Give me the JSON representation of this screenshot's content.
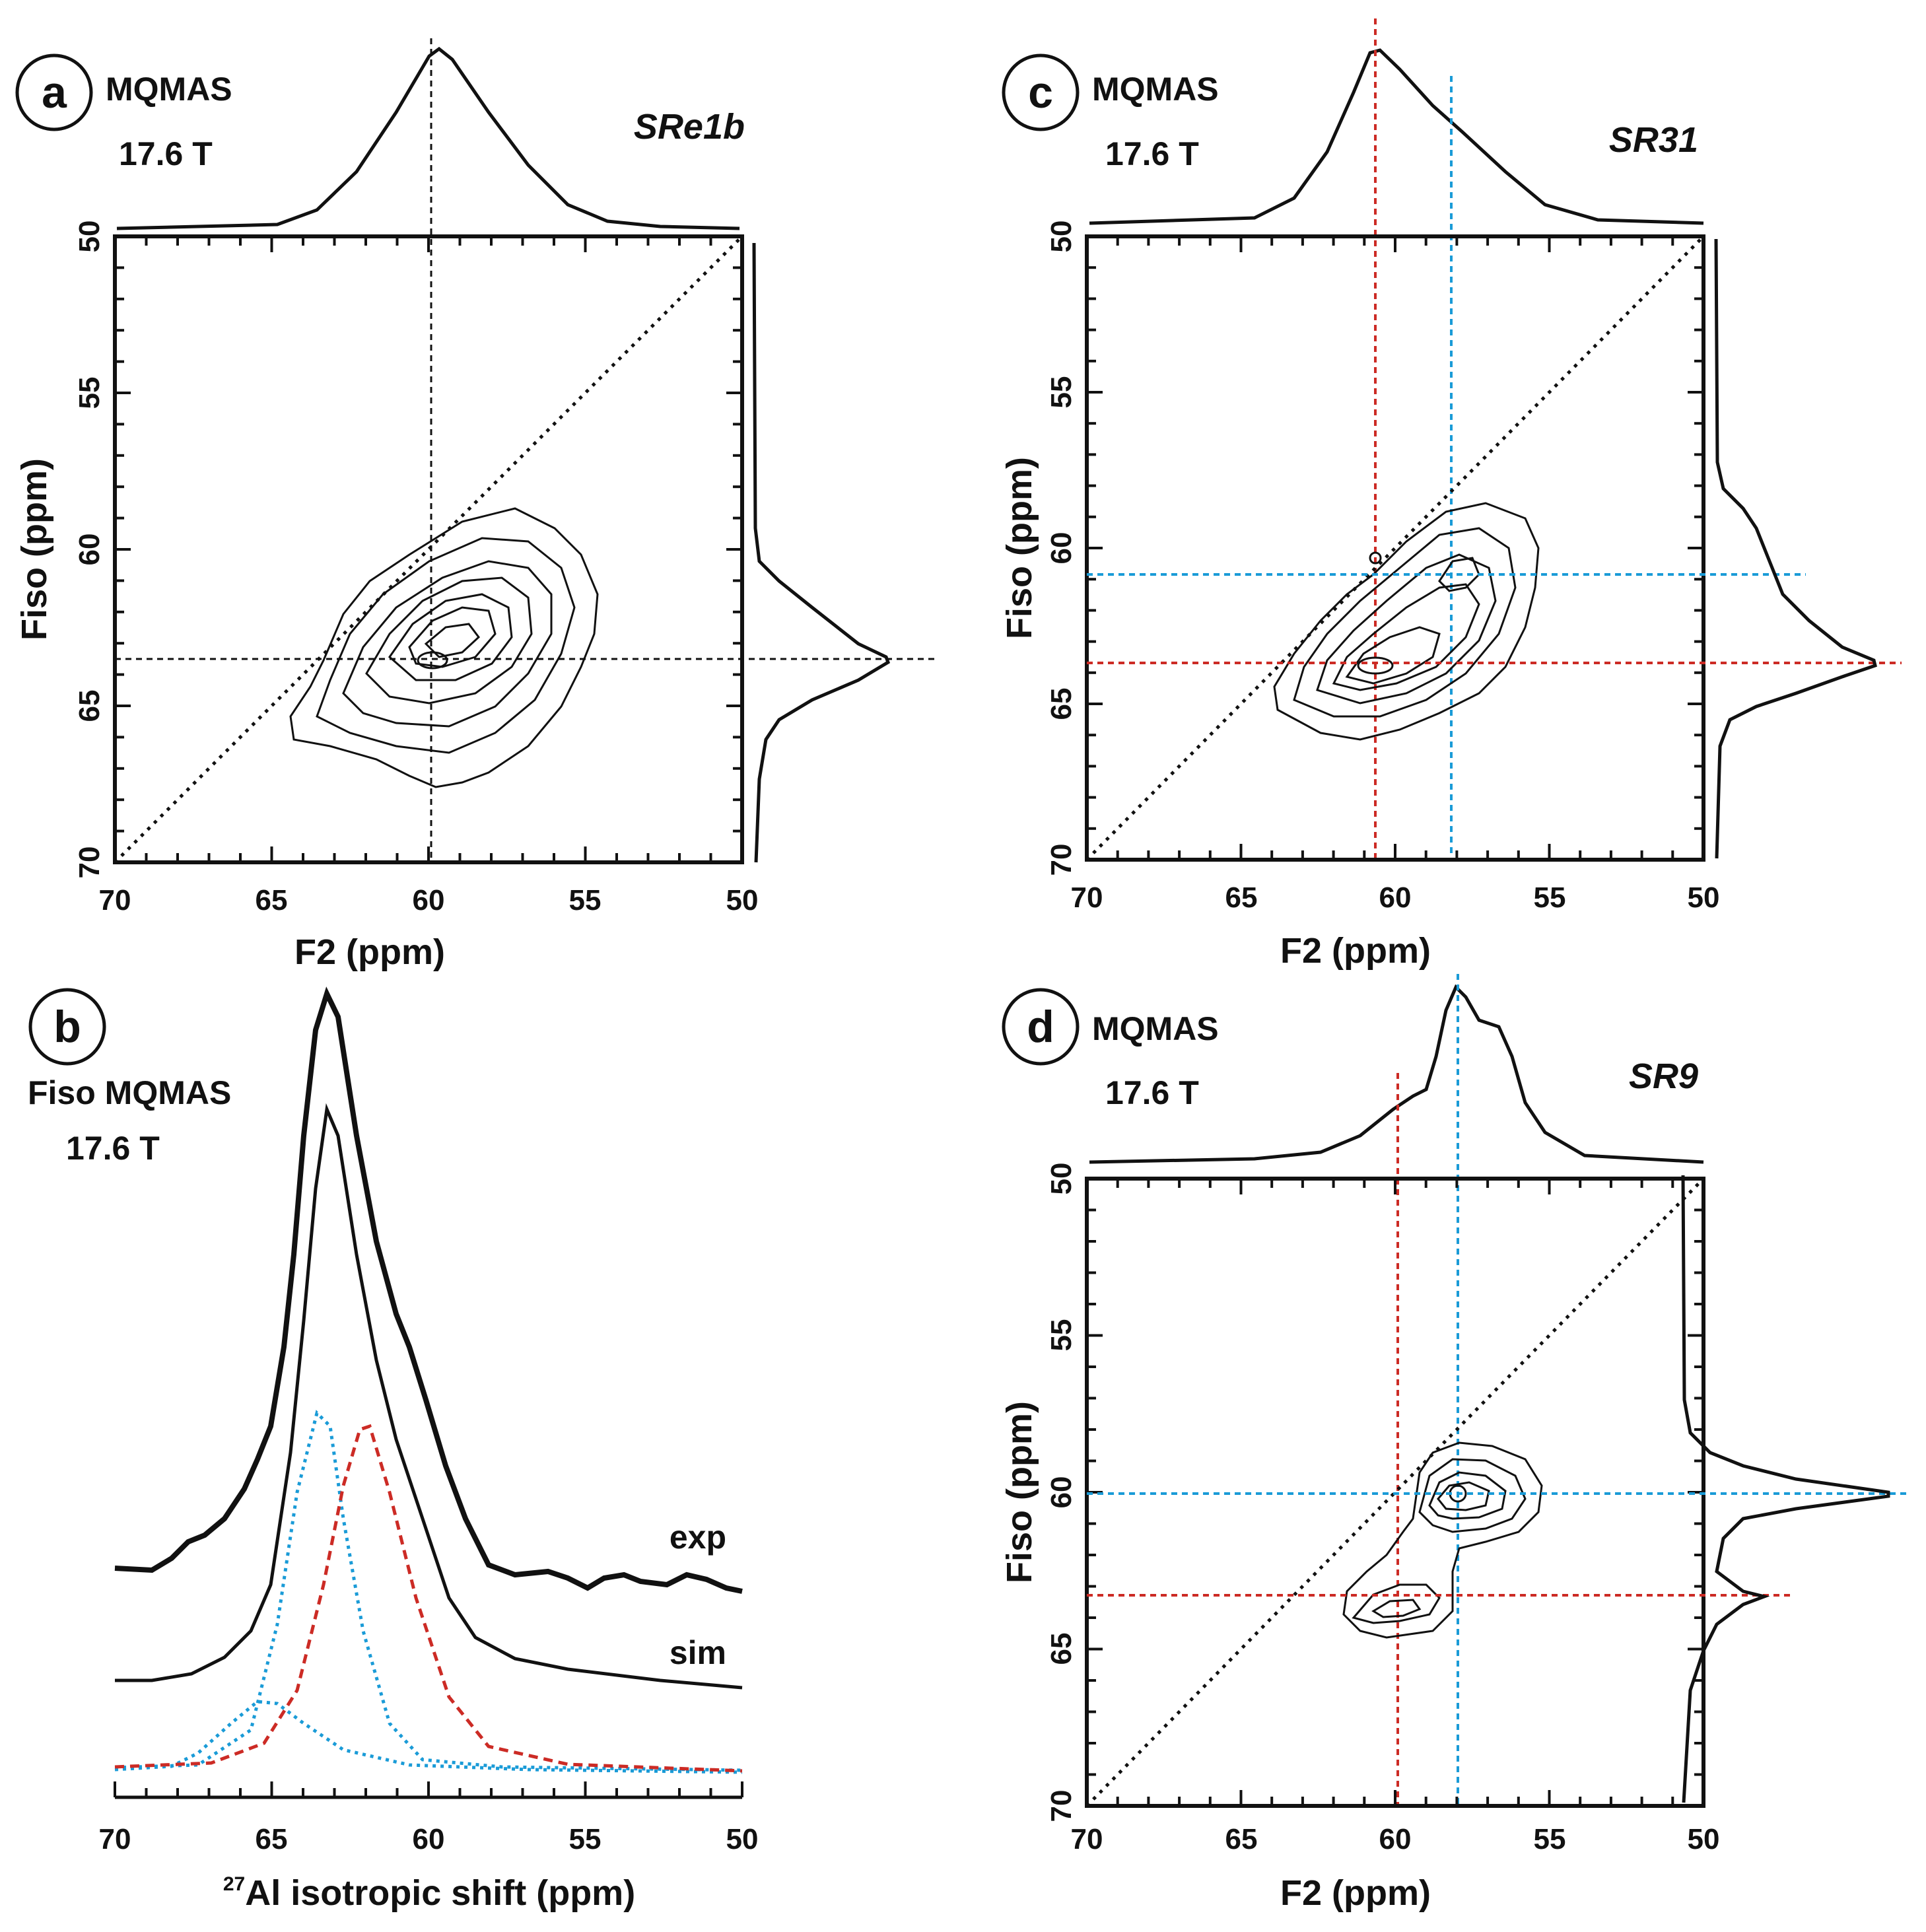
{
  "colors": {
    "ink": "#111111",
    "red": "#cc2b25",
    "blue": "#1a9bd7"
  },
  "panels": {
    "a": {
      "letter": "a",
      "method": "MQMAS",
      "field": "17.6 T",
      "sample": "SRe1b",
      "xlabel": "F2 (ppm)",
      "ylabel": "Fiso (ppm)"
    },
    "b": {
      "letter": "b",
      "method": "Fiso MQMAS",
      "field": "17.6 T",
      "xlabel_sup": "27",
      "xlabel": "Al isotropic shift (ppm)",
      "exp_label": "exp",
      "sim_label": "sim"
    },
    "c": {
      "letter": "c",
      "method": "MQMAS",
      "field": "17.6 T",
      "sample": "SR31",
      "xlabel": "F2 (ppm)",
      "ylabel": "Fiso (ppm)"
    },
    "d": {
      "letter": "d",
      "method": "MQMAS",
      "field": "17.6 T",
      "sample": "SR9",
      "xlabel": "F2 (ppm)",
      "ylabel": "Fiso (ppm)"
    }
  },
  "chart_data": [
    {
      "id": "a",
      "type": "contour",
      "title": "MQMAS 17.6 T SRe1b",
      "xlabel": "F2 (ppm)",
      "ylabel": "Fiso (ppm)",
      "xlim": [
        70,
        50
      ],
      "ylim": [
        70,
        50
      ],
      "xticks": [
        "70",
        "65",
        "60",
        "55",
        "50"
      ],
      "yticks": [
        "70",
        "65",
        "60",
        "55",
        "50"
      ],
      "diagonal": true,
      "sites": [
        {
          "f2": 60.0,
          "fiso": 63.3,
          "color": "black"
        }
      ],
      "f2_projection_peak": 60.0,
      "fiso_projection_peak": 63.3
    },
    {
      "id": "b",
      "type": "line",
      "title": "Fiso MQMAS 17.6 T",
      "xlabel": "27Al isotropic shift (ppm)",
      "xlim": [
        70,
        50
      ],
      "xticks": [
        "70",
        "65",
        "60",
        "55",
        "50"
      ],
      "series": [
        {
          "name": "exp",
          "peak": 63.2,
          "style": "solid-thick"
        },
        {
          "name": "sim",
          "peak": 63.2,
          "style": "solid"
        },
        {
          "name": "component 1",
          "peak": 63.5,
          "style": "dotted",
          "color": "blue"
        },
        {
          "name": "component 2",
          "peak": 65.5,
          "style": "dotted",
          "color": "blue"
        },
        {
          "name": "component 3",
          "peak": 62.0,
          "style": "dashed",
          "color": "red"
        }
      ]
    },
    {
      "id": "c",
      "type": "contour",
      "title": "MQMAS 17.6 T SR31",
      "xlabel": "F2 (ppm)",
      "ylabel": "Fiso (ppm)",
      "xlim": [
        70,
        50
      ],
      "ylim": [
        70,
        50
      ],
      "xticks": [
        "70",
        "65",
        "60",
        "55",
        "50"
      ],
      "yticks": [
        "70",
        "65",
        "60",
        "55",
        "50"
      ],
      "diagonal": true,
      "sites": [
        {
          "f2": 60.6,
          "fiso": 63.4,
          "color": "red"
        },
        {
          "f2": 58.2,
          "fiso": 60.7,
          "color": "blue"
        }
      ],
      "f2_projection_peak": 60.6,
      "fiso_projection_peak": 63.4
    },
    {
      "id": "d",
      "type": "contour",
      "title": "MQMAS 17.6 T SR9",
      "xlabel": "F2 (ppm)",
      "ylabel": "Fiso (ppm)",
      "xlim": [
        70,
        50
      ],
      "ylim": [
        70,
        50
      ],
      "xticks": [
        "70",
        "65",
        "60",
        "55",
        "50"
      ],
      "yticks": [
        "70",
        "65",
        "60",
        "55",
        "50"
      ],
      "diagonal": true,
      "sites": [
        {
          "f2": 58.0,
          "fiso": 60.0,
          "color": "blue"
        },
        {
          "f2": 59.9,
          "fiso": 63.3,
          "color": "red"
        }
      ],
      "f2_projection_peak": 58.0,
      "fiso_projection_peak": 60.0
    }
  ]
}
